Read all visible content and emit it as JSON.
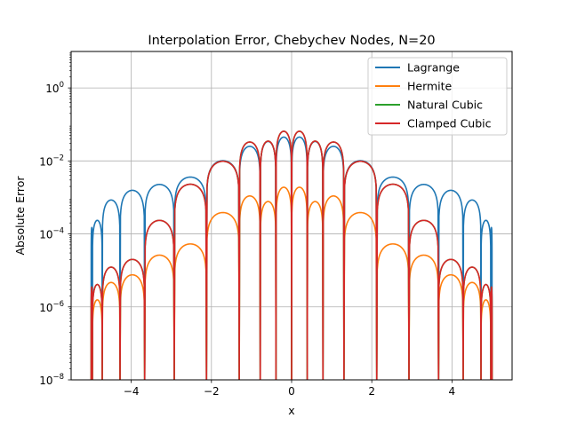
{
  "chart_data": {
    "type": "line",
    "title": "Interpolation Error, Chebychev Nodes, N=20",
    "xlabel": "x",
    "ylabel": "Absolute Error",
    "xlim": [
      -5.5,
      5.5
    ],
    "ylim": [
      1e-08,
      10
    ],
    "yscale": "log",
    "grid": true,
    "legend_position": "top-right",
    "x_ticks": [
      -4,
      -2,
      0,
      2,
      4
    ],
    "x_tick_labels": [
      "−4",
      "−2",
      "0",
      "2",
      "4"
    ],
    "y_tick_exponents": [
      -8,
      -6,
      -4,
      -2,
      0
    ],
    "y_tick_base": "10",
    "nodes": [
      -4.9692,
      -4.7244,
      -4.2797,
      -3.6654,
      -2.9277,
      -2.1234,
      -1.3055,
      -0.7822,
      -0.3905,
      0.0,
      0.3905,
      0.7822,
      1.3055,
      2.1234,
      2.9277,
      3.6654,
      4.2797,
      4.7244,
      4.9692
    ],
    "series": [
      {
        "name": "Lagrange",
        "color": "#1f77b4",
        "x": [
          -4.9,
          -4.8,
          -4.55,
          -4.05,
          -3.35,
          -2.55,
          -1.65,
          -1.05,
          -0.55,
          -0.2,
          0.2,
          0.55,
          1.05,
          1.65,
          2.55,
          3.35,
          4.05,
          4.55,
          4.8,
          4.9
        ],
        "y": [
          0.00015,
          0.00035,
          0.0008,
          0.0015,
          0.0022,
          0.0035,
          0.011,
          0.025,
          0.035,
          0.045,
          0.045,
          0.035,
          0.025,
          0.011,
          0.0035,
          0.0022,
          0.0015,
          0.0008,
          0.00035,
          0.00015
        ]
      },
      {
        "name": "Hermite",
        "color": "#ff7f0e",
        "x": [
          -4.9,
          -4.75,
          -4.55,
          -4.05,
          -3.35,
          -2.55,
          -1.65,
          -1.05,
          -0.55,
          -0.2,
          0.2,
          0.55,
          1.05,
          1.65,
          2.55,
          3.35,
          4.05,
          4.55,
          4.75,
          4.9
        ],
        "y": [
          1.2e-06,
          2.5e-06,
          4.5e-06,
          6.5e-06,
          2.5e-05,
          5e-05,
          0.00045,
          0.0011,
          0.00075,
          0.0019,
          0.0019,
          0.00075,
          0.0011,
          0.00045,
          5e-05,
          2.5e-05,
          6.5e-06,
          4.5e-06,
          2.5e-06,
          1.2e-06
        ]
      },
      {
        "name": "Natural Cubic",
        "color": "#2ca02c",
        "x": [
          -4.9,
          -4.75,
          -4.55,
          -4.05,
          -3.35,
          -2.55,
          -1.65,
          -1.05,
          -0.55,
          -0.2,
          0.2,
          0.55,
          1.05,
          1.65,
          2.55,
          3.35,
          4.05,
          4.55,
          4.75,
          4.9
        ],
        "y": [
          3.5e-06,
          5.5e-06,
          1.2e-05,
          1.5e-05,
          0.0002,
          0.0022,
          0.011,
          0.033,
          0.035,
          0.065,
          0.065,
          0.035,
          0.033,
          0.011,
          0.0022,
          0.0002,
          1.5e-05,
          1.2e-05,
          5.5e-06,
          3.5e-06
        ]
      },
      {
        "name": "Clamped Cubic",
        "color": "#d62728",
        "x": [
          -4.9,
          -4.75,
          -4.55,
          -4.05,
          -3.35,
          -2.55,
          -1.65,
          -1.05,
          -0.55,
          -0.2,
          0.2,
          0.55,
          1.05,
          1.65,
          2.55,
          3.35,
          4.05,
          4.55,
          4.75,
          4.9
        ],
        "y": [
          3.5e-06,
          5.5e-06,
          1.2e-05,
          1.5e-05,
          0.0002,
          0.0022,
          0.011,
          0.033,
          0.035,
          0.065,
          0.065,
          0.035,
          0.033,
          0.011,
          0.0022,
          0.0002,
          1.5e-05,
          1.2e-05,
          5.5e-06,
          3.5e-06
        ]
      }
    ]
  }
}
